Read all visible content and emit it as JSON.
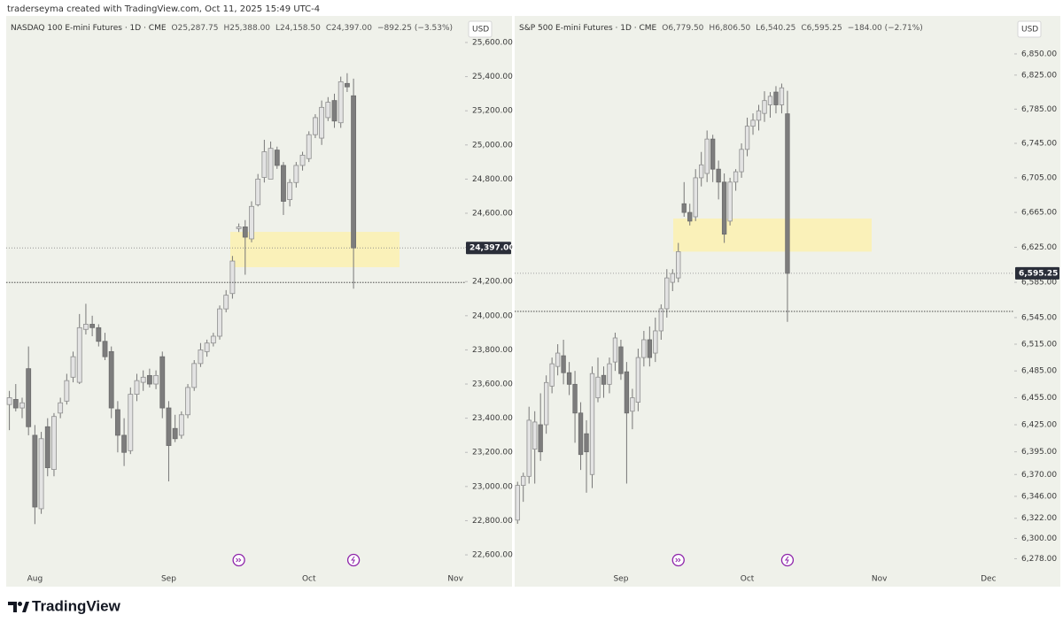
{
  "credit": "traderseyma created with TradingView.com, Oct 11, 2025 15:49 UTC-4",
  "brand": "TradingView",
  "chart_data": [
    {
      "type": "candlestick",
      "title": "NASDAQ 100 E-mini Futures · 1D · CME",
      "ohlc_header": [
        {
          "key": "O",
          "value": "25,287.75"
        },
        {
          "key": "H",
          "value": "25,388.00"
        },
        {
          "key": "L",
          "value": "24,158.50"
        },
        {
          "key": "C",
          "value": "24,397.00"
        }
      ],
      "change": "−892.25 (−3.53%)",
      "currency": "USD",
      "last_label": "24,397.00",
      "categories": [
        null,
        null,
        null,
        null,
        "Aug",
        null,
        null,
        null,
        null,
        null,
        null,
        null,
        null,
        null,
        null,
        null,
        null,
        null,
        null,
        null,
        null,
        null,
        null,
        null,
        null,
        "Sep",
        null,
        null,
        null,
        null,
        null,
        null,
        null,
        null,
        null,
        null,
        null,
        null,
        null,
        null,
        null,
        null,
        null,
        null,
        null,
        null,
        null,
        "Oct",
        null,
        null,
        null,
        null,
        null,
        null,
        null,
        null,
        null,
        null,
        null,
        null,
        null,
        null,
        null,
        null,
        null,
        null,
        null,
        null,
        null,
        null,
        "Nov",
        null
      ],
      "open": [
        23480,
        23510,
        23460,
        23690,
        23300,
        22870,
        23350,
        23100,
        23430,
        23500,
        23640,
        23610,
        23920,
        23950,
        23930,
        23850,
        23790,
        23450,
        23300,
        23210,
        23540,
        23610,
        23650,
        23600,
        23760,
        23460,
        23340,
        23300,
        23420,
        23580,
        23720,
        23790,
        23840,
        23880,
        24040,
        24130,
        24510,
        24520,
        24450,
        24650,
        24810,
        24800,
        24970,
        24880,
        24680,
        24780,
        24880,
        24920,
        25060,
        25040,
        25160,
        25260,
        25130,
        25360,
        25287.75,
        null,
        null,
        null,
        null,
        null,
        null,
        null,
        null,
        null,
        null,
        null,
        null,
        null,
        null,
        null,
        null,
        null
      ],
      "high": [
        23560,
        23600,
        23520,
        23820,
        23360,
        23320,
        23400,
        23430,
        23520,
        23660,
        23790,
        24010,
        24070,
        24000,
        23950,
        23900,
        23820,
        23500,
        23400,
        23580,
        23660,
        23680,
        23690,
        23680,
        23790,
        23500,
        23420,
        23440,
        23600,
        23740,
        23840,
        23860,
        23900,
        24060,
        24150,
        24350,
        24540,
        24560,
        24670,
        24830,
        25030,
        25020,
        24990,
        24900,
        24800,
        24900,
        24960,
        25080,
        25180,
        25260,
        25280,
        25300,
        25400,
        25420,
        25388,
        null,
        null,
        null,
        null,
        null,
        null,
        null,
        null,
        null,
        null,
        null,
        null,
        null,
        null,
        null,
        null,
        null
      ],
      "low": [
        23330,
        23440,
        23400,
        23300,
        22780,
        22840,
        23060,
        23060,
        23400,
        23480,
        23610,
        23600,
        23890,
        23880,
        23820,
        23740,
        23400,
        23200,
        23120,
        23190,
        23500,
        23560,
        23580,
        23570,
        23400,
        23030,
        23260,
        23280,
        23400,
        23560,
        23700,
        23760,
        23820,
        23860,
        24020,
        24100,
        24490,
        24240,
        24430,
        24640,
        24780,
        24800,
        24860,
        24590,
        24640,
        24750,
        24850,
        24900,
        25040,
        25000,
        25140,
        25100,
        25100,
        25310,
        24158.5,
        null,
        null,
        null,
        null,
        null,
        null,
        null,
        null,
        null,
        null,
        null,
        null,
        null,
        null,
        null,
        null,
        null
      ],
      "close": [
        23520,
        23460,
        23490,
        23350,
        22880,
        23280,
        23110,
        23410,
        23490,
        23620,
        23760,
        23930,
        23950,
        23930,
        23850,
        23760,
        23460,
        23300,
        23200,
        23540,
        23620,
        23640,
        23600,
        23650,
        23460,
        23240,
        23280,
        23420,
        23580,
        23720,
        23800,
        23840,
        23880,
        24040,
        24120,
        24320,
        24520,
        24460,
        24640,
        24800,
        24960,
        24980,
        24880,
        24670,
        24780,
        24880,
        24940,
        25060,
        25160,
        25220,
        25250,
        25140,
        25370,
        25340,
        24397,
        null,
        null,
        null,
        null,
        null,
        null,
        null,
        null,
        null,
        null,
        null,
        null,
        null,
        null,
        null,
        null,
        null
      ],
      "ylim": [
        22507,
        25745
      ],
      "yticks": [
        {
          "value": 25600,
          "label": "25,600.00"
        },
        {
          "value": 25400,
          "label": "25,400.00"
        },
        {
          "value": 25200,
          "label": "25,200.00"
        },
        {
          "value": 25000,
          "label": "25,000.00"
        },
        {
          "value": 24800,
          "label": "24,800.00"
        },
        {
          "value": 24600,
          "label": "24,600.00"
        },
        {
          "value": 24400,
          "label": "24,400.00"
        },
        {
          "value": 24200,
          "label": "24,200.00"
        },
        {
          "value": 24000,
          "label": "24,000.00"
        },
        {
          "value": 23800,
          "label": "23,800.00"
        },
        {
          "value": 23600,
          "label": "23,600.00"
        },
        {
          "value": 23400,
          "label": "23,400.00"
        },
        {
          "value": 23200,
          "label": "23,200.00"
        },
        {
          "value": 23000,
          "label": "23,000.00"
        },
        {
          "value": 22800,
          "label": "22,800.00"
        },
        {
          "value": 22600,
          "label": "22,600.00"
        }
      ],
      "log": false,
      "grid": false,
      "zone": [
        24284,
        24491
      ],
      "hline": 24195,
      "colors": {
        "up": "#e3e3e3",
        "down": "#7d7d7d",
        "wick": "#777777",
        "zone": "#fbf1b0"
      }
    },
    {
      "type": "candlestick",
      "title": "S&P 500 E-mini Futures · 1D · CME",
      "ohlc_header": [
        {
          "key": "O",
          "value": "6,779.50"
        },
        {
          "key": "H",
          "value": "6,806.50"
        },
        {
          "key": "L",
          "value": "6,540.25"
        },
        {
          "key": "C",
          "value": "6,595.25"
        }
      ],
      "change": "−184.00 (−2.71%)",
      "currency": "USD",
      "last_label": "6,595.25",
      "categories": [
        null,
        null,
        null,
        null,
        null,
        null,
        null,
        null,
        null,
        null,
        null,
        null,
        null,
        null,
        null,
        null,
        null,
        null,
        "Sep",
        null,
        null,
        null,
        null,
        null,
        null,
        null,
        null,
        null,
        null,
        null,
        null,
        null,
        null,
        null,
        null,
        null,
        null,
        null,
        null,
        null,
        "Oct",
        null,
        null,
        null,
        null,
        null,
        null,
        null,
        null,
        null,
        null,
        null,
        null,
        null,
        null,
        null,
        null,
        null,
        null,
        null,
        null,
        null,
        null,
        "Nov",
        null,
        null,
        null,
        null,
        null,
        null,
        null,
        null,
        null,
        null,
        null,
        null,
        null,
        null,
        null,
        null,
        null,
        null,
        "Dec",
        null,
        null,
        null,
        null
      ],
      "open": [
        6320,
        6358,
        6368,
        6398,
        6425,
        6425,
        6468,
        6490,
        6502,
        6483,
        6470,
        6438,
        6415,
        6370,
        6455,
        6480,
        6470,
        6495,
        6512,
        6484,
        6440,
        6450,
        6500,
        6520,
        6505,
        6530,
        6555,
        6585,
        6590,
        6675,
        6665,
        6660,
        6705,
        6710,
        6750,
        6715,
        6700,
        6655,
        6700,
        6712,
        6738,
        6765,
        6772,
        6780,
        6790,
        6805,
        6790,
        6779.5,
        null,
        null,
        null,
        null,
        null,
        null,
        null,
        null,
        null,
        null,
        null,
        null,
        null,
        null,
        null,
        null,
        null,
        null,
        null,
        null,
        null,
        null,
        null,
        null,
        null,
        null,
        null,
        null,
        null,
        null,
        null,
        null,
        null,
        null,
        null,
        null,
        null,
        null,
        null
      ],
      "high": [
        6362,
        6372,
        6445,
        6440,
        6460,
        6480,
        6500,
        6515,
        6520,
        6495,
        6485,
        6450,
        6430,
        6490,
        6500,
        6490,
        6500,
        6528,
        6520,
        6495,
        6465,
        6510,
        6530,
        6535,
        6545,
        6560,
        6600,
        6600,
        6630,
        6700,
        6675,
        6715,
        6735,
        6760,
        6755,
        6725,
        6710,
        6705,
        6715,
        6745,
        6775,
        6780,
        6790,
        6806,
        6805,
        6812,
        6815,
        6806.5,
        null,
        null,
        null,
        null,
        null,
        null,
        null,
        null,
        null,
        null,
        null,
        null,
        null,
        null,
        null,
        null,
        null,
        null,
        null,
        null,
        null,
        null,
        null,
        null,
        null,
        null,
        null,
        null,
        null,
        null,
        null,
        null,
        null,
        null,
        null,
        null,
        null,
        null,
        null
      ],
      "low": [
        6316,
        6340,
        6360,
        6360,
        6385,
        6415,
        6460,
        6480,
        6470,
        6458,
        6405,
        6375,
        6350,
        6355,
        6450,
        6455,
        6460,
        6485,
        6475,
        6360,
        6420,
        6440,
        6490,
        6490,
        6495,
        6520,
        6545,
        6575,
        6585,
        6660,
        6650,
        6655,
        6695,
        6700,
        6700,
        6680,
        6630,
        6650,
        6690,
        6705,
        6730,
        6755,
        6760,
        6770,
        6775,
        6780,
        6780,
        6540.25,
        null,
        null,
        null,
        null,
        null,
        null,
        null,
        null,
        null,
        null,
        null,
        null,
        null,
        null,
        null,
        null,
        null,
        null,
        null,
        null,
        null,
        null,
        null,
        null,
        null,
        null,
        null,
        null,
        null,
        null,
        null,
        null,
        null,
        null,
        null,
        null,
        null,
        null,
        null
      ],
      "close": [
        6358,
        6368,
        6430,
        6428,
        6395,
        6472,
        6493,
        6505,
        6483,
        6470,
        6438,
        6392,
        6395,
        6482,
        6478,
        6470,
        6493,
        6522,
        6482,
        6438,
        6455,
        6500,
        6520,
        6500,
        6530,
        6555,
        6590,
        6595,
        6620,
        6665,
        6655,
        6705,
        6720,
        6750,
        6715,
        6700,
        6640,
        6700,
        6712,
        6738,
        6765,
        6772,
        6783,
        6795,
        6800,
        6790,
        6810,
        6595.25,
        null,
        null,
        null,
        null,
        null,
        null,
        null,
        null,
        null,
        null,
        null,
        null,
        null,
        null,
        null,
        null,
        null,
        null,
        null,
        null,
        null,
        null,
        null,
        null,
        null,
        null,
        null,
        null,
        null,
        null,
        null,
        null,
        null,
        null,
        null,
        null,
        null,
        null,
        null
      ],
      "ylim": [
        6265,
        6893
      ],
      "yticks": [
        {
          "value": 6850,
          "label": "6,850.00"
        },
        {
          "value": 6825,
          "label": "6,825.00"
        },
        {
          "value": 6785,
          "label": "6,785.00"
        },
        {
          "value": 6745,
          "label": "6,745.00"
        },
        {
          "value": 6705,
          "label": "6,705.00"
        },
        {
          "value": 6665,
          "label": "6,665.00"
        },
        {
          "value": 6625,
          "label": "6,625.00"
        },
        {
          "value": 6585,
          "label": "6,585.00"
        },
        {
          "value": 6545,
          "label": "6,545.00"
        },
        {
          "value": 6515,
          "label": "6,515.00"
        },
        {
          "value": 6485,
          "label": "6,485.00"
        },
        {
          "value": 6455,
          "label": "6,455.00"
        },
        {
          "value": 6425,
          "label": "6,425.00"
        },
        {
          "value": 6395,
          "label": "6,395.00"
        },
        {
          "value": 6370,
          "label": "6,370.00"
        },
        {
          "value": 6346,
          "label": "6,346.00"
        },
        {
          "value": 6322,
          "label": "6,322.00"
        },
        {
          "value": 6300,
          "label": "6,300.00"
        },
        {
          "value": 6278,
          "label": "6,278.00"
        }
      ],
      "log": true,
      "grid": false,
      "zone": [
        6620,
        6658
      ],
      "hline": 6552,
      "colors": {
        "up": "#e3e3e3",
        "down": "#7d7d7d",
        "wick": "#777777",
        "zone": "#fbf1b0"
      }
    }
  ]
}
